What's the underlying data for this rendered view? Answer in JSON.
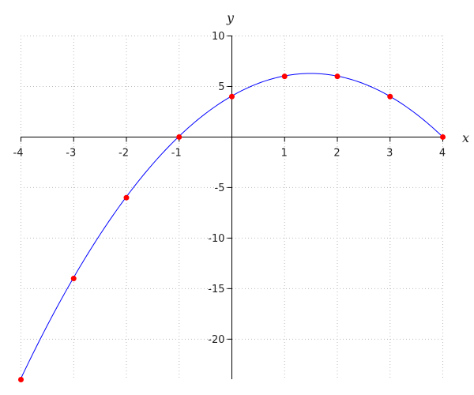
{
  "chart_data": {
    "type": "line",
    "title": "",
    "xlabel": "x",
    "ylabel": "y",
    "xlim": [
      -4,
      4
    ],
    "ylim": [
      -24,
      10
    ],
    "grid": true,
    "x_ticks": [
      -4,
      -3,
      -2,
      -1,
      0,
      1,
      2,
      3,
      4
    ],
    "x_tick_labels": [
      "-4",
      "-3",
      "-2",
      "-1",
      "",
      "1",
      "2",
      "3",
      "4"
    ],
    "y_ticks": [
      10,
      5,
      -5,
      -10,
      -15,
      -20
    ],
    "y_tick_labels": [
      "10",
      "5",
      "-5",
      "-10",
      "-15",
      "-20"
    ],
    "curve": {
      "function": "y = -x^2 + 3x + 4",
      "color": "#0000ff"
    },
    "points": {
      "color": "#ff0000",
      "x": [
        -4,
        -3,
        -2,
        -1,
        0,
        1,
        2,
        3,
        4
      ],
      "y": [
        -24,
        -14,
        -6,
        0,
        4,
        6,
        6,
        4,
        0
      ]
    }
  }
}
